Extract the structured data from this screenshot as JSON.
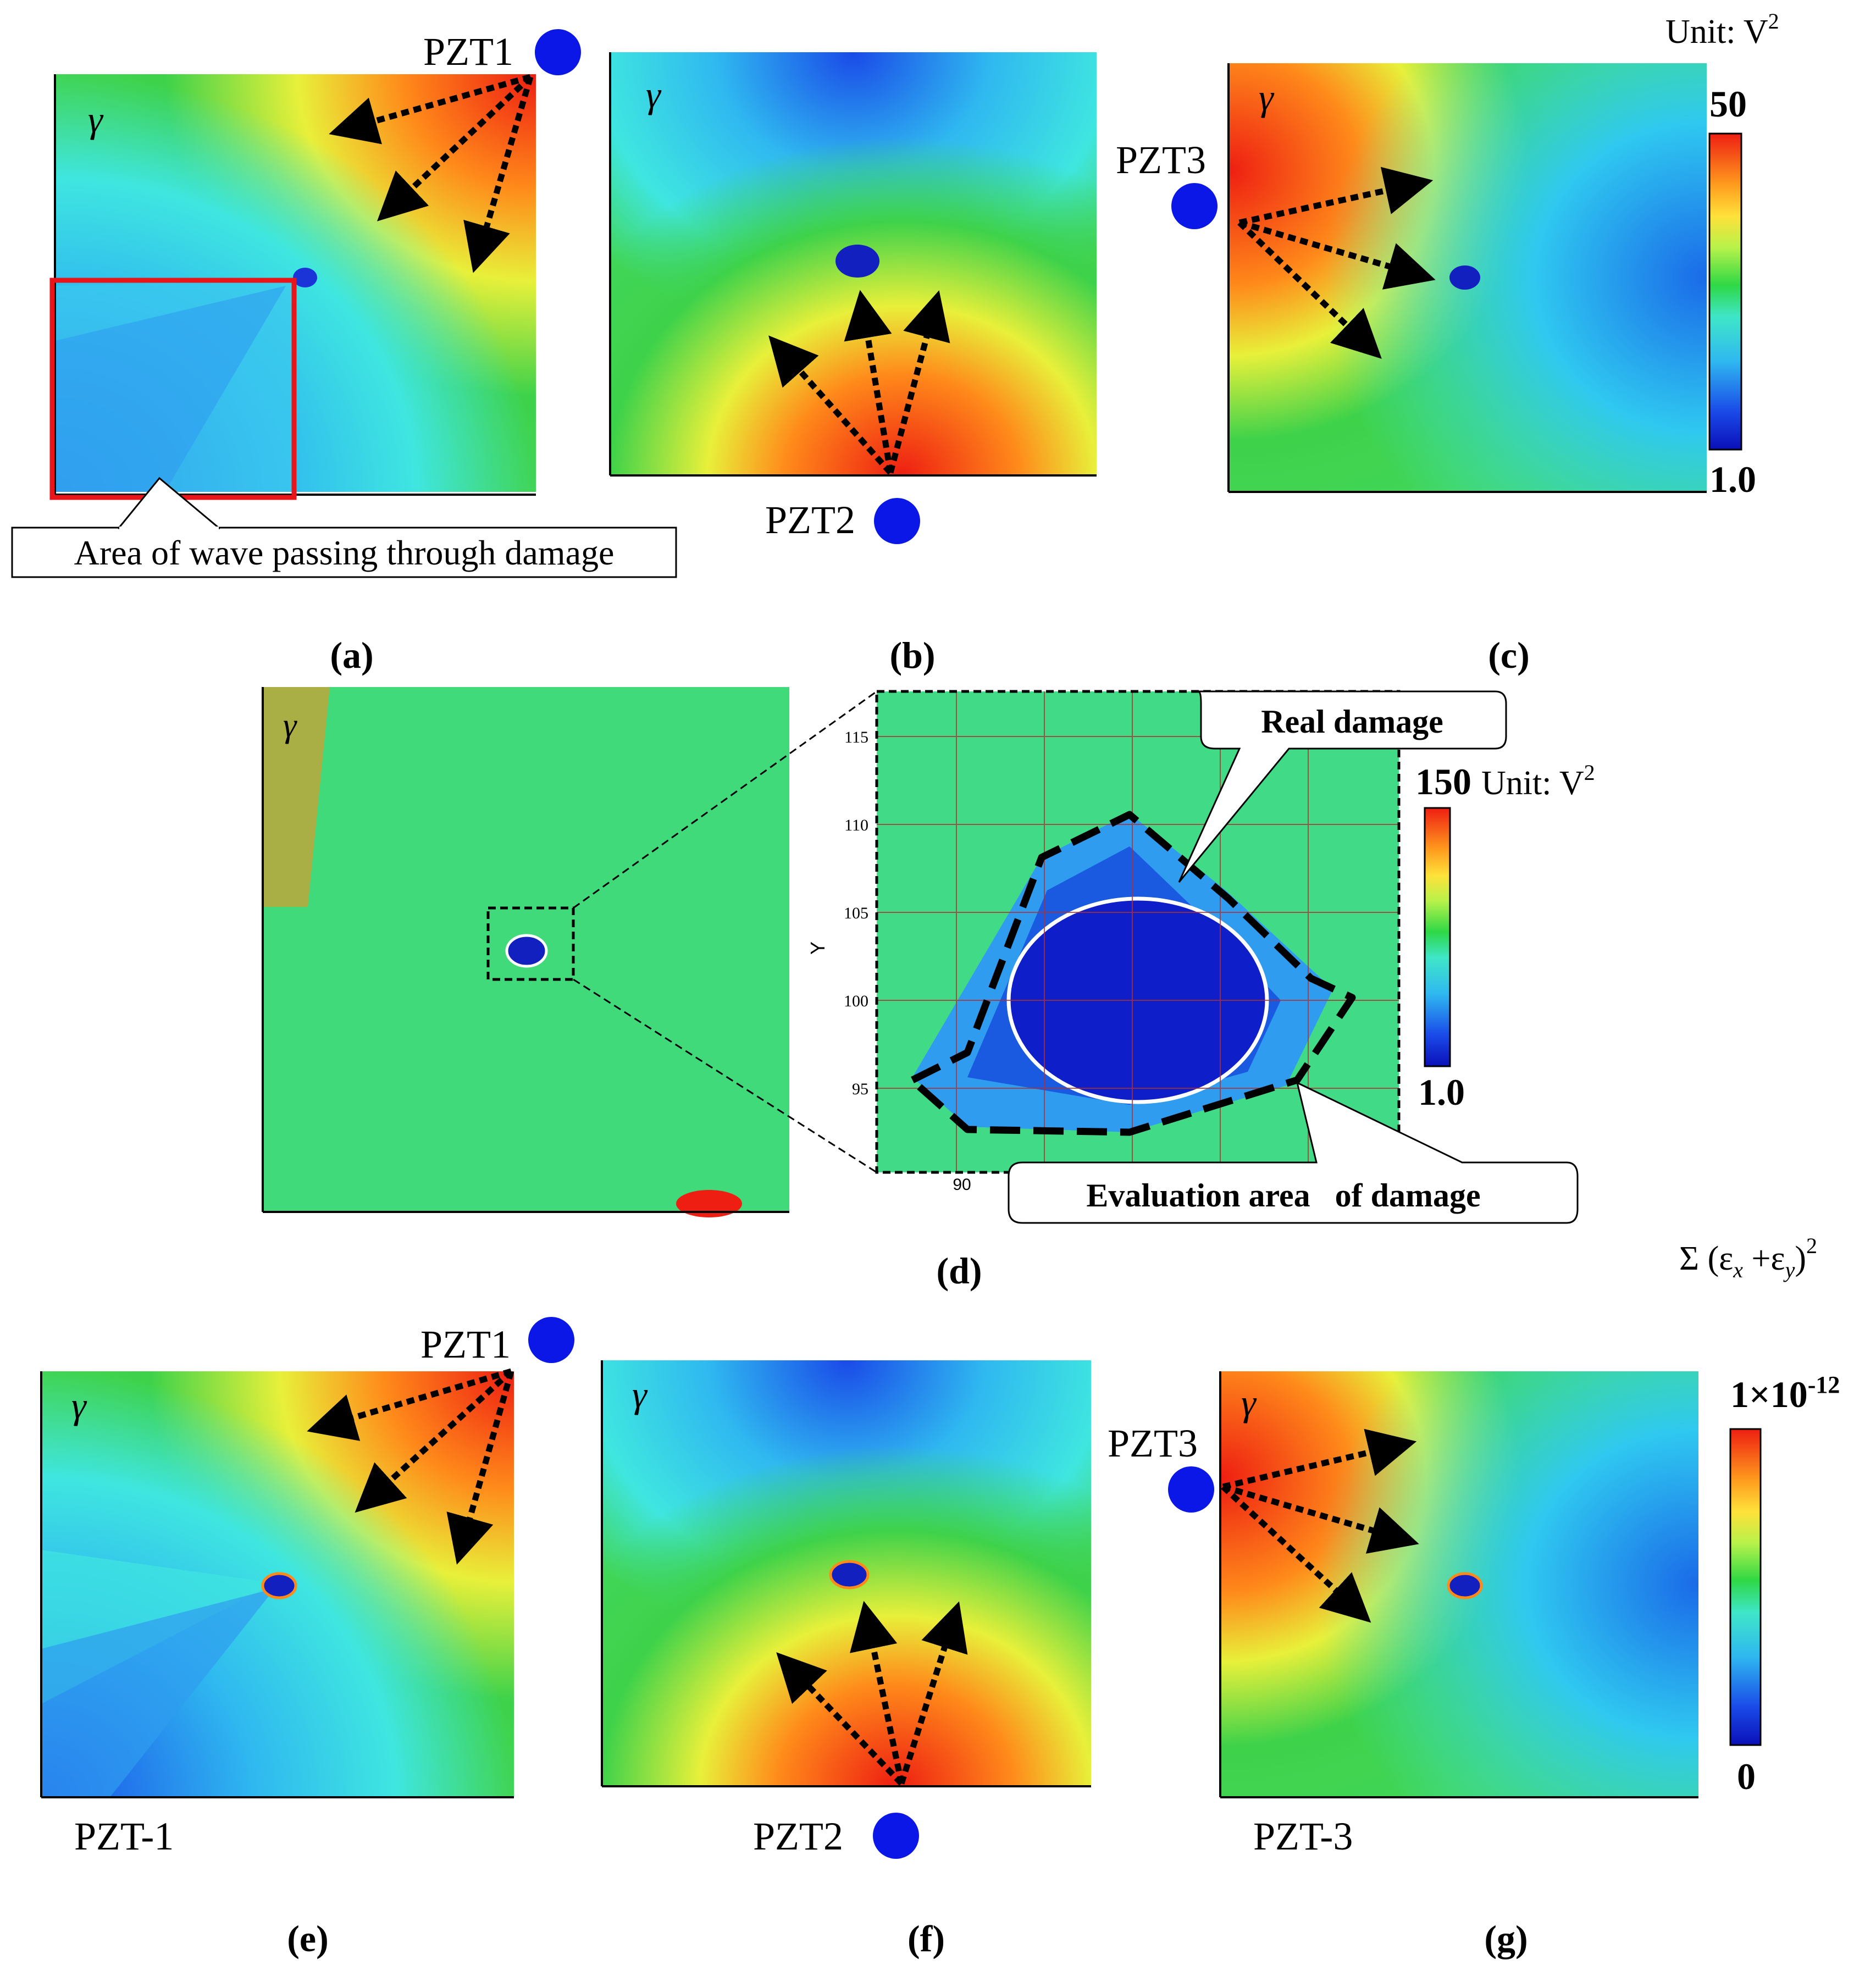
{
  "symbol": "γ",
  "units": {
    "unit_v2": "Unit: V",
    "sq": "2",
    "exp_neg12": "-12",
    "strain_sum": "Σ (ε",
    "strain_x": "x",
    "strain_plus": " +ε",
    "strain_y": "y",
    "strain_close": ")"
  },
  "panels": {
    "a": {
      "caption": "(a)",
      "pzt": "PZT1",
      "callout": "Area of wave passing through damage"
    },
    "b": {
      "caption": "(b)",
      "pzt": "PZT2"
    },
    "c": {
      "caption": "(c)",
      "pzt": "PZT3"
    },
    "d": {
      "caption": "(d)",
      "real_damage": "Real damage",
      "evaluation_area": "Evaluation area   of damage",
      "y_axis_label": "Y",
      "y_ticks": [
        "115",
        "110",
        "105",
        "100",
        "95"
      ],
      "x_ticks": [
        "90"
      ]
    },
    "e": {
      "caption": "(e)",
      "pzt": "PZT1",
      "label": "PZT-1"
    },
    "f": {
      "caption": "(f)",
      "pzt": "PZT2"
    },
    "g": {
      "caption": "(g)",
      "pzt": "PZT3",
      "label": "PZT-3"
    }
  },
  "colorbars": {
    "top": {
      "max": "50",
      "min": "1.0"
    },
    "mid": {
      "max": "150",
      "min": "1.0"
    },
    "bottom": {
      "max": "1×10",
      "min": "0"
    }
  },
  "colors": {
    "pzt_marker": "#0a17e6",
    "frame_highlight": "#e8161b"
  }
}
